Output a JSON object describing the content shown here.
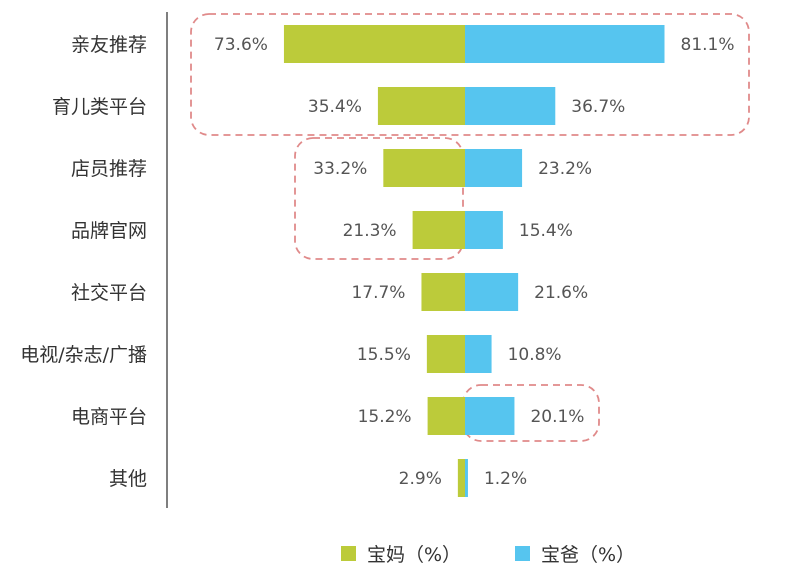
{
  "chart_data": {
    "type": "bar",
    "orientation": "horizontal-diverging",
    "categories": [
      "亲友推荐",
      "育儿类平台",
      "店员推荐",
      "品牌官网",
      "社交平台",
      "电视/杂志/广播",
      "电商平台",
      "其他"
    ],
    "series": [
      {
        "name": "宝妈（%）",
        "color": "#bccb3a",
        "values": [
          73.6,
          35.4,
          33.2,
          21.3,
          17.7,
          15.5,
          15.2,
          2.9
        ],
        "labels": [
          "73.6%",
          "35.4%",
          "33.2%",
          "21.3%",
          "17.7%",
          "15.5%",
          "15.2%",
          "2.9%"
        ]
      },
      {
        "name": "宝爸（%）",
        "color": "#56c5ef",
        "values": [
          81.1,
          36.7,
          23.2,
          15.4,
          21.6,
          10.8,
          20.1,
          1.2
        ],
        "labels": [
          "81.1%",
          "36.7%",
          "23.2%",
          "15.4%",
          "21.6%",
          "10.8%",
          "20.1%",
          "1.2%"
        ]
      }
    ],
    "legend": {
      "position": "bottom",
      "items": [
        {
          "label": "宝妈（%）",
          "color": "#bccb3a"
        },
        {
          "label": "宝爸（%）",
          "color": "#56c5ef"
        }
      ]
    },
    "highlights": [
      {
        "categories": [
          "亲友推荐",
          "育儿类平台"
        ],
        "series": "both"
      },
      {
        "categories": [
          "店员推荐",
          "品牌官网"
        ],
        "series": "宝妈（%）"
      },
      {
        "categories": [
          "电商平台"
        ],
        "series": "宝爸（%）"
      }
    ],
    "highlight_color": "#e08a8a",
    "axis_color": "#555555",
    "grid": false
  }
}
